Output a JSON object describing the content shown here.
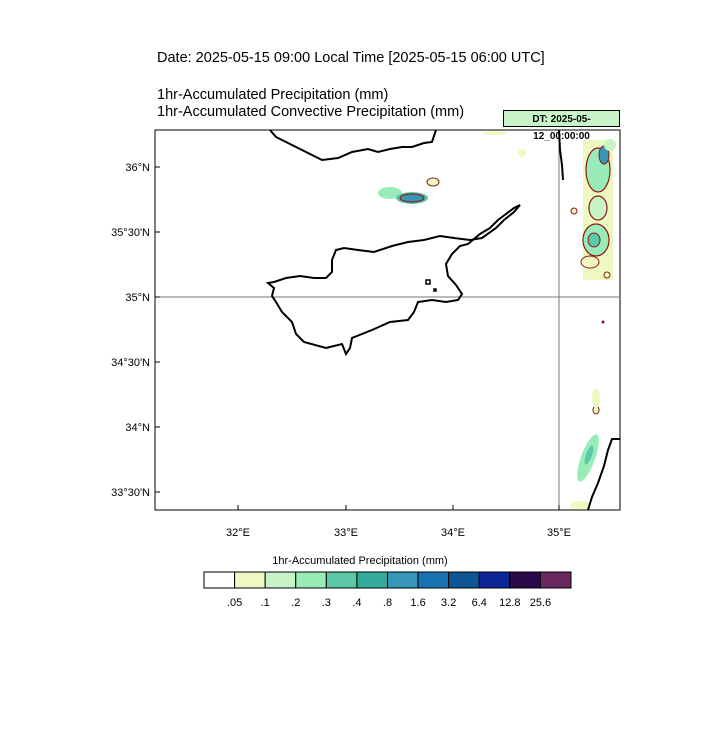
{
  "header": {
    "date_line": "Date: 2025-05-15  09:00 Local Time [2025-05-15  06:00 UTC]",
    "line1": "1hr-Accumulated Precipitation   (mm)",
    "line2": "1hr-Accumulated Convective Precipitation   (mm)",
    "dt_badge": "DT: 2025-05-12_00:00:00"
  },
  "map": {
    "lon_labels": [
      "32°E",
      "33°E",
      "34°E",
      "35°E"
    ],
    "lat_labels": [
      "36°N",
      "35°30'N",
      "35°N",
      "34°30'N",
      "34°N",
      "33°30'N"
    ],
    "gridline_lon": "35°E",
    "gridline_lat": "35°N"
  },
  "colorbar": {
    "title": "1hr-Accumulated Precipitation  (mm)",
    "colors": [
      "#ffffff",
      "#eef8c0",
      "#c8f5c8",
      "#98ecb8",
      "#5cc8a8",
      "#33aa9a",
      "#3596b8",
      "#1a74b4",
      "#0f5696",
      "#0e2596",
      "#2a0a4a",
      "#6a2a60"
    ],
    "tick_labels": [
      ".05",
      ".1",
      ".2",
      ".3",
      ".4",
      ".8",
      "1.6",
      "3.2",
      "6.4",
      "12.8",
      "25.6"
    ]
  }
}
